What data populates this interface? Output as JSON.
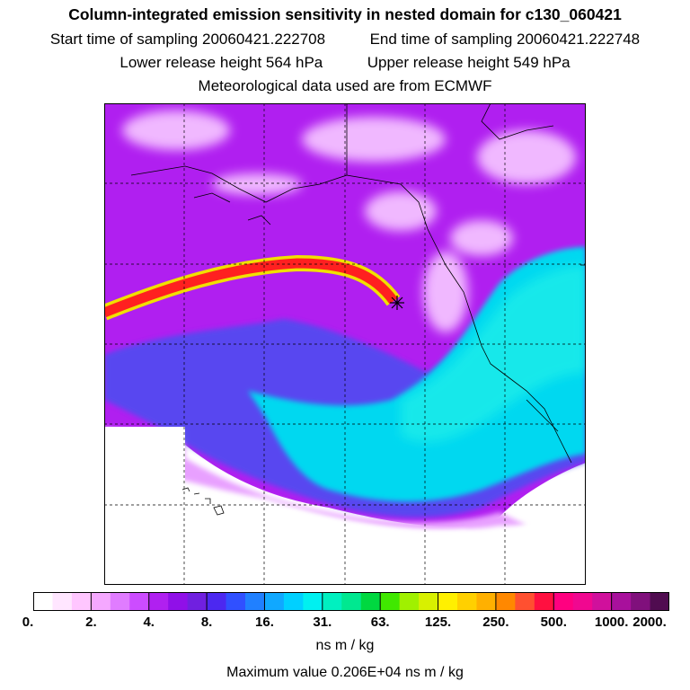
{
  "title": "Column-integrated emission sensitivity in nested domain for c130_060421",
  "sampling": {
    "start_label": "Start time of sampling",
    "start_value": "20060421.222708",
    "end_label": "End time of sampling",
    "end_value": "20060421.222748"
  },
  "release": {
    "lower_label": "Lower release height",
    "lower_value": "564 hPa",
    "upper_label": "Upper release height",
    "upper_value": "549 hPa"
  },
  "met_note": "Meteorological data used are from ECMWF",
  "colorbar": {
    "tick_labels": [
      "0.",
      "2.",
      "4.",
      "8.",
      "16.",
      "31.",
      "63.",
      "125.",
      "250.",
      "500.",
      "1000.",
      "2000."
    ],
    "colors": [
      "#ffffff",
      "#ffe6ff",
      "#ffc6ff",
      "#f5a8ff",
      "#e07cff",
      "#cc4cff",
      "#b020f0",
      "#9010e8",
      "#7020e0",
      "#4c28f0",
      "#3050ff",
      "#2080ff",
      "#10a8ff",
      "#00d0ff",
      "#00f0f0",
      "#00f0c0",
      "#00e890",
      "#00d840",
      "#40e800",
      "#a0f000",
      "#d8f000",
      "#fff000",
      "#ffd000",
      "#ffb000",
      "#ff8800",
      "#ff5030",
      "#ff1040",
      "#ff0080",
      "#f00890",
      "#d0109c",
      "#a8109c",
      "#80107c",
      "#500c50"
    ],
    "units": "ns m / kg"
  },
  "max_label": "Maximum value",
  "max_value": "0.206E+04 ns m / kg",
  "map_colors": {
    "background_purple": "#b01ff0",
    "light_pink": "#f0b0ff",
    "cyan": "#00e0f0",
    "blue": "#3a7cff",
    "plume_red": "#ff2020",
    "plume_yellow": "#f0e000"
  }
}
